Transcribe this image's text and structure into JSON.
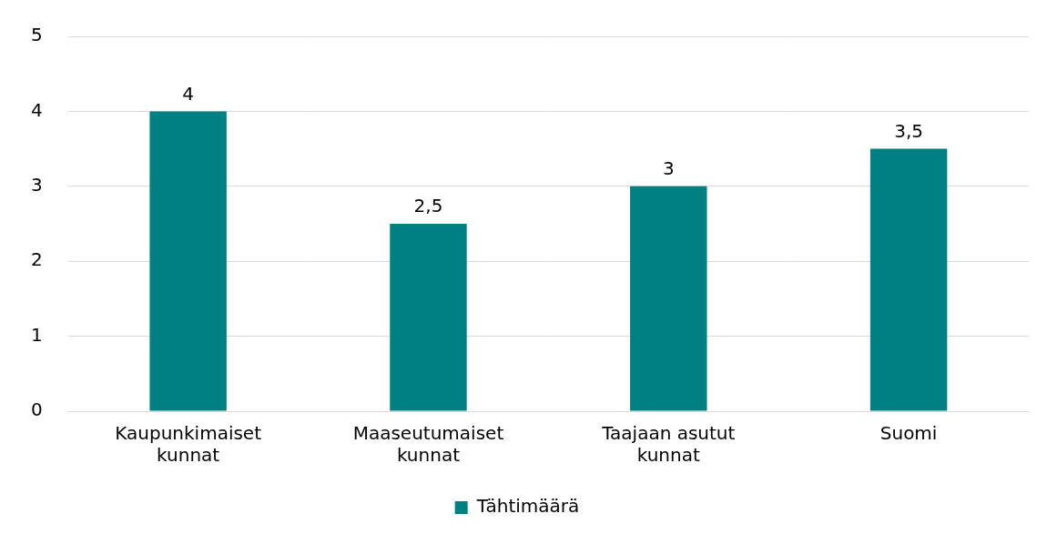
{
  "chart_data": {
    "type": "bar",
    "categories": [
      "Kaupunkimaiset kunnat",
      "Maaseutumaiset kunnat",
      "Taajaan asutut kunnat",
      "Suomi"
    ],
    "series": [
      {
        "name": "Tähtimäärä",
        "color": "#008080",
        "values": [
          4,
          2.5,
          3,
          3.5
        ],
        "value_labels": [
          "4",
          "2,5",
          "3",
          "3,5"
        ]
      }
    ],
    "ylim": [
      0,
      5
    ],
    "yticks": [
      0,
      1,
      2,
      3,
      4,
      5
    ],
    "grid": true,
    "legend": "bottom",
    "data_labels": true
  }
}
